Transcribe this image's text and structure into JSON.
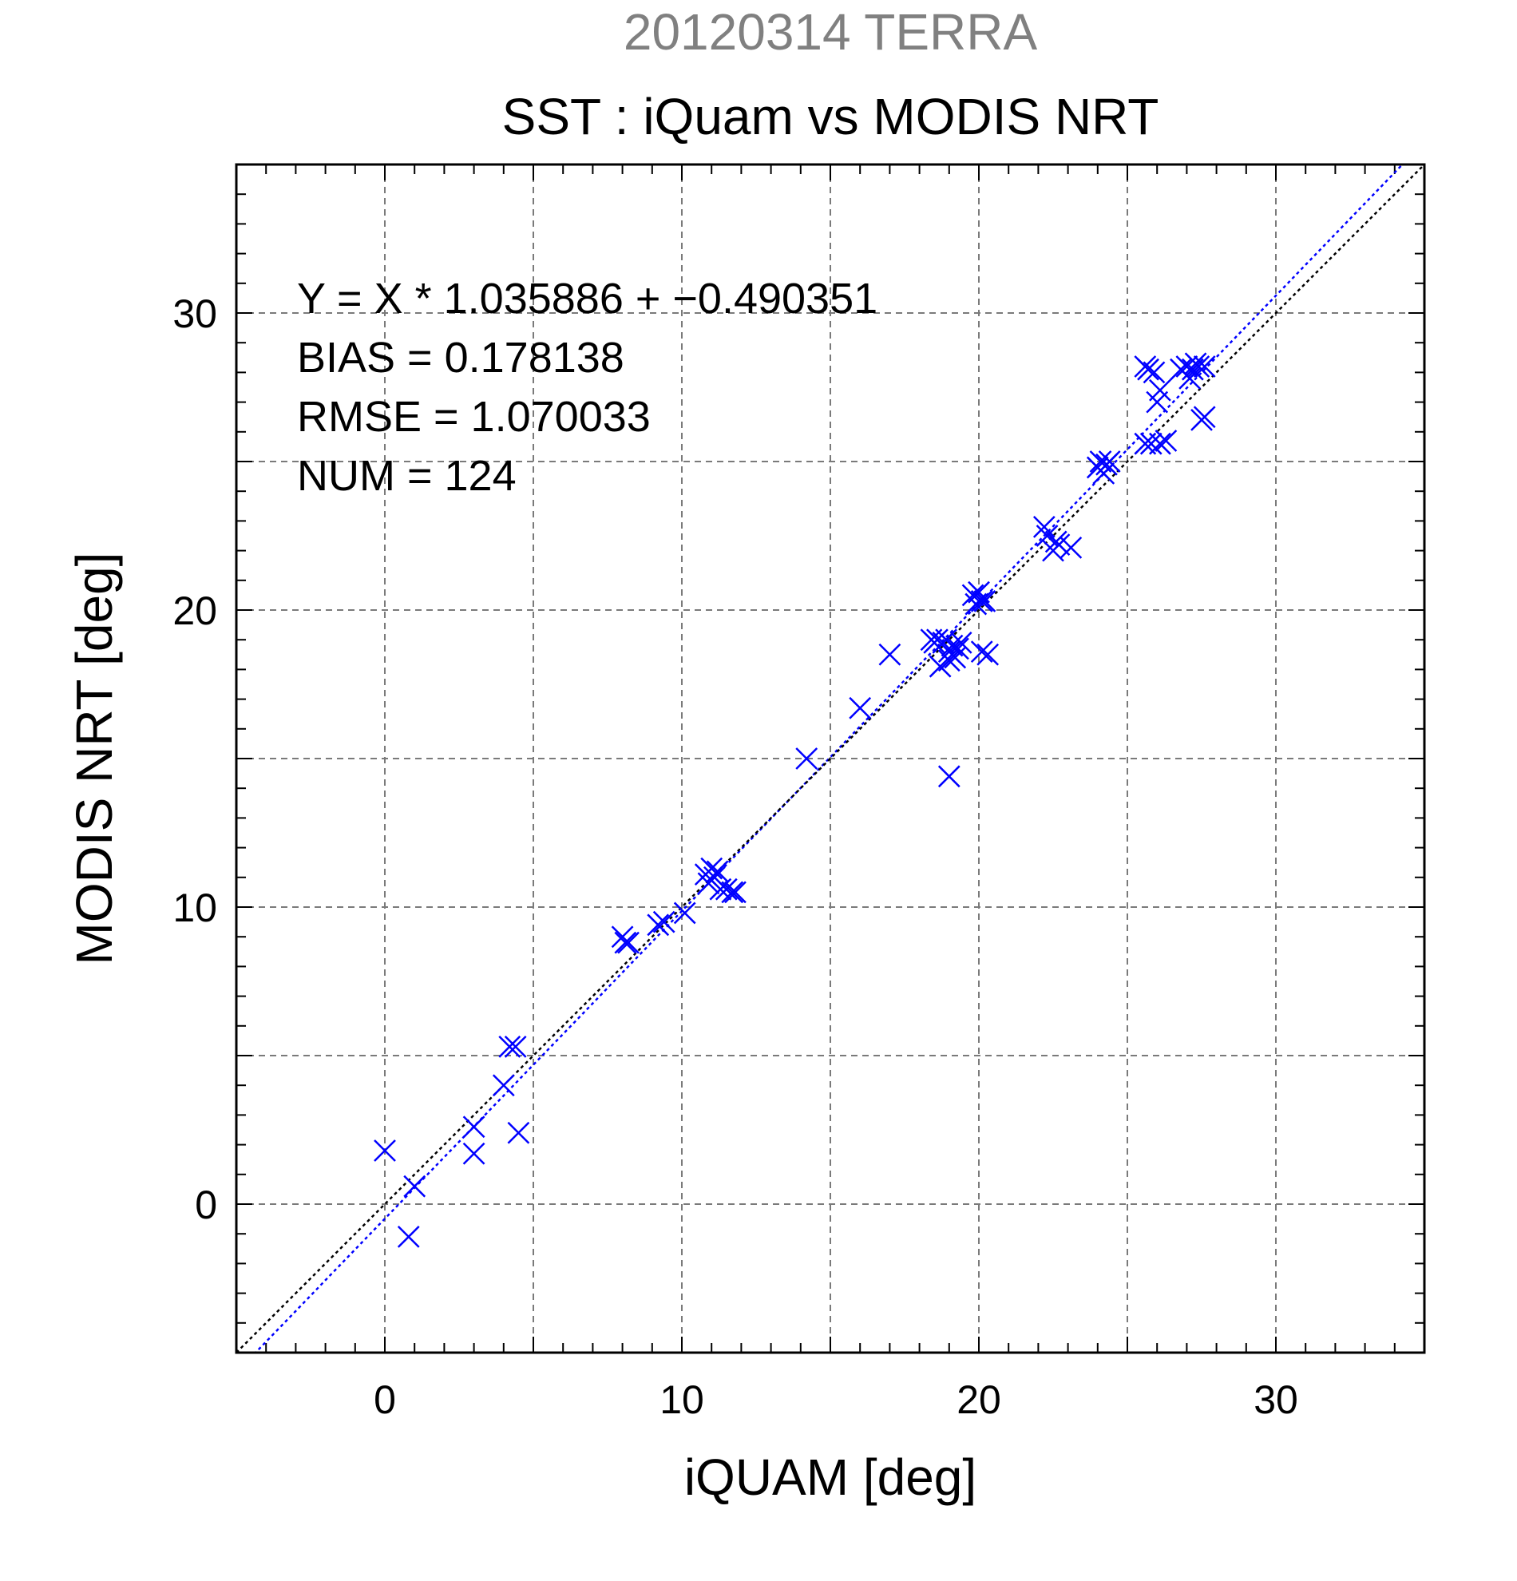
{
  "chart_data": {
    "type": "scatter",
    "supertitle": "20120314 TERRA",
    "title": "SST : iQuam vs MODIS NRT",
    "xlabel": "iQUAM [deg]",
    "ylabel": "MODIS NRT [deg]",
    "xlim": [
      -5,
      35
    ],
    "ylim": [
      -5,
      35
    ],
    "xticks": [
      0,
      10,
      20,
      30
    ],
    "yticks": [
      0,
      10,
      20,
      30
    ],
    "xtick_labels": [
      "0",
      "10",
      "20",
      "30"
    ],
    "ytick_labels": [
      "0",
      "10",
      "20",
      "30"
    ],
    "grid": true,
    "stats": [
      "Y = X * 1.035886 + −0.490351",
      "BIAS = 0.178138",
      "RMSE = 1.070033",
      "NUM = 124"
    ],
    "lines": [
      {
        "role": "regression",
        "slope": 1.035886,
        "intercept": -0.490351,
        "color": "#0000ff",
        "style": "dotted"
      },
      {
        "role": "identity",
        "slope": 1.0,
        "intercept": 0.0,
        "color": "#000000",
        "style": "dotted"
      }
    ],
    "series": [
      {
        "marker": "x",
        "color": "#0000ff",
        "points": [
          [
            0.0,
            1.8
          ],
          [
            0.8,
            -1.1
          ],
          [
            1.0,
            0.6
          ],
          [
            3.0,
            2.6
          ],
          [
            3.0,
            1.7
          ],
          [
            4.0,
            4.0
          ],
          [
            4.2,
            5.3
          ],
          [
            4.4,
            5.3
          ],
          [
            4.5,
            2.4
          ],
          [
            8.0,
            9.0
          ],
          [
            8.1,
            8.8
          ],
          [
            8.2,
            8.8
          ],
          [
            9.2,
            9.4
          ],
          [
            9.4,
            9.5
          ],
          [
            10.1,
            9.8
          ],
          [
            10.8,
            11.1
          ],
          [
            10.9,
            10.8
          ],
          [
            11.0,
            11.3
          ],
          [
            11.1,
            11.0
          ],
          [
            11.2,
            11.2
          ],
          [
            11.3,
            10.6
          ],
          [
            11.5,
            10.6
          ],
          [
            11.7,
            10.5
          ],
          [
            11.8,
            10.5
          ],
          [
            14.2,
            15.0
          ],
          [
            16.0,
            16.7
          ],
          [
            17.0,
            18.5
          ],
          [
            18.4,
            19.0
          ],
          [
            18.5,
            18.9
          ],
          [
            18.6,
            19.0
          ],
          [
            18.7,
            18.1
          ],
          [
            18.8,
            18.9
          ],
          [
            18.9,
            19.0
          ],
          [
            19.0,
            18.6
          ],
          [
            19.0,
            18.3
          ],
          [
            19.1,
            18.8
          ],
          [
            19.2,
            18.4
          ],
          [
            19.3,
            18.7
          ],
          [
            19.4,
            18.9
          ],
          [
            19.0,
            14.4
          ],
          [
            19.8,
            20.5
          ],
          [
            19.9,
            20.2
          ],
          [
            20.0,
            20.6
          ],
          [
            20.1,
            20.3
          ],
          [
            20.2,
            20.3
          ],
          [
            20.1,
            18.6
          ],
          [
            20.3,
            18.5
          ],
          [
            22.2,
            22.8
          ],
          [
            22.3,
            22.5
          ],
          [
            22.5,
            22.0
          ],
          [
            22.6,
            22.3
          ],
          [
            22.7,
            22.2
          ],
          [
            23.1,
            22.1
          ],
          [
            24.0,
            24.8
          ],
          [
            24.1,
            25.0
          ],
          [
            24.2,
            24.6
          ],
          [
            24.3,
            24.9
          ],
          [
            24.4,
            25.0
          ],
          [
            25.6,
            28.2
          ],
          [
            25.7,
            28.1
          ],
          [
            25.9,
            28.0
          ],
          [
            25.6,
            25.6
          ],
          [
            25.8,
            25.6
          ],
          [
            26.0,
            27.0
          ],
          [
            26.1,
            27.4
          ],
          [
            26.1,
            25.6
          ],
          [
            26.3,
            25.7
          ],
          [
            26.8,
            28.1
          ],
          [
            27.0,
            28.2
          ],
          [
            27.1,
            27.8
          ],
          [
            27.2,
            28.1
          ],
          [
            27.3,
            28.3
          ],
          [
            27.4,
            28.2
          ],
          [
            27.6,
            28.2
          ],
          [
            27.5,
            26.4
          ],
          [
            27.6,
            26.5
          ]
        ]
      }
    ]
  }
}
